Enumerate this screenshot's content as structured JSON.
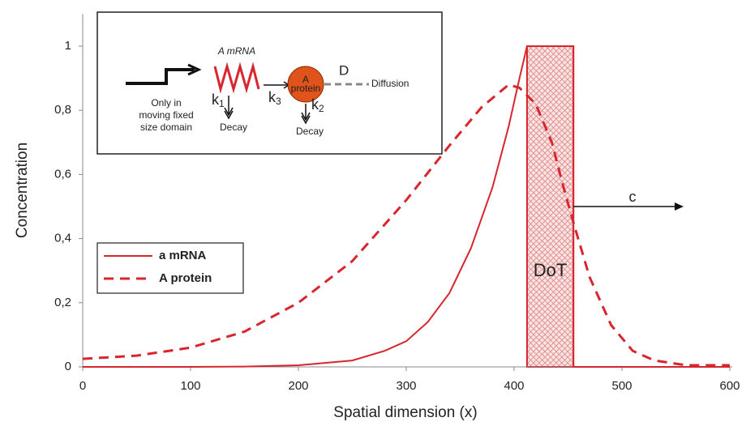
{
  "chart_data": {
    "type": "line",
    "x_label": "Spatial dimension (x)",
    "y_label": "Concentration",
    "xlim": [
      0,
      600
    ],
    "ylim": [
      0,
      1.1
    ],
    "xticks": [
      0,
      100,
      200,
      300,
      400,
      500,
      600
    ],
    "yticks": [
      0,
      {
        "value": 0.2,
        "label": "0,2"
      },
      {
        "value": 0.4,
        "label": "0,4"
      },
      {
        "value": 0.6,
        "label": "0,6"
      },
      {
        "value": 0.8,
        "label": "0,8"
      },
      1
    ],
    "legend": "left",
    "series": [
      {
        "name": "a mRNA",
        "color": "#d7262e",
        "dash": false,
        "x": [
          0,
          100,
          150,
          200,
          250,
          280,
          300,
          320,
          340,
          360,
          380,
          395,
          405,
          412,
          455,
          455,
          500,
          600
        ],
        "values": [
          0,
          0,
          0.001,
          0.005,
          0.02,
          0.05,
          0.08,
          0.14,
          0.23,
          0.37,
          0.56,
          0.75,
          0.9,
          1,
          1,
          0,
          0,
          0
        ]
      },
      {
        "name": "A protein",
        "color": "#d7262e",
        "dash": true,
        "x": [
          0,
          50,
          100,
          150,
          200,
          250,
          300,
          340,
          370,
          395,
          405,
          420,
          435,
          445,
          455,
          470,
          490,
          510,
          530,
          560,
          600
        ],
        "values": [
          0.025,
          0.035,
          0.06,
          0.11,
          0.2,
          0.33,
          0.52,
          0.69,
          0.81,
          0.88,
          0.87,
          0.82,
          0.7,
          0.57,
          0.45,
          0.28,
          0.13,
          0.05,
          0.02,
          0.005,
          0.005
        ]
      }
    ],
    "region": {
      "label": "DoT",
      "x": [
        412,
        455
      ],
      "height": 1
    },
    "arrow_label": "c",
    "inset": {
      "gene": "Only in moving  fixed size domain",
      "mrna": "A mRNA",
      "protein": "A protein",
      "k1": {
        "k": "k",
        "sub": "1"
      },
      "k2": {
        "k": "k",
        "sub": "2"
      },
      "k3": {
        "k": "k",
        "sub": "3"
      },
      "d": "D",
      "diffusion": "Diffusion",
      "decay1": "Decay",
      "decay2": "Decay"
    }
  }
}
